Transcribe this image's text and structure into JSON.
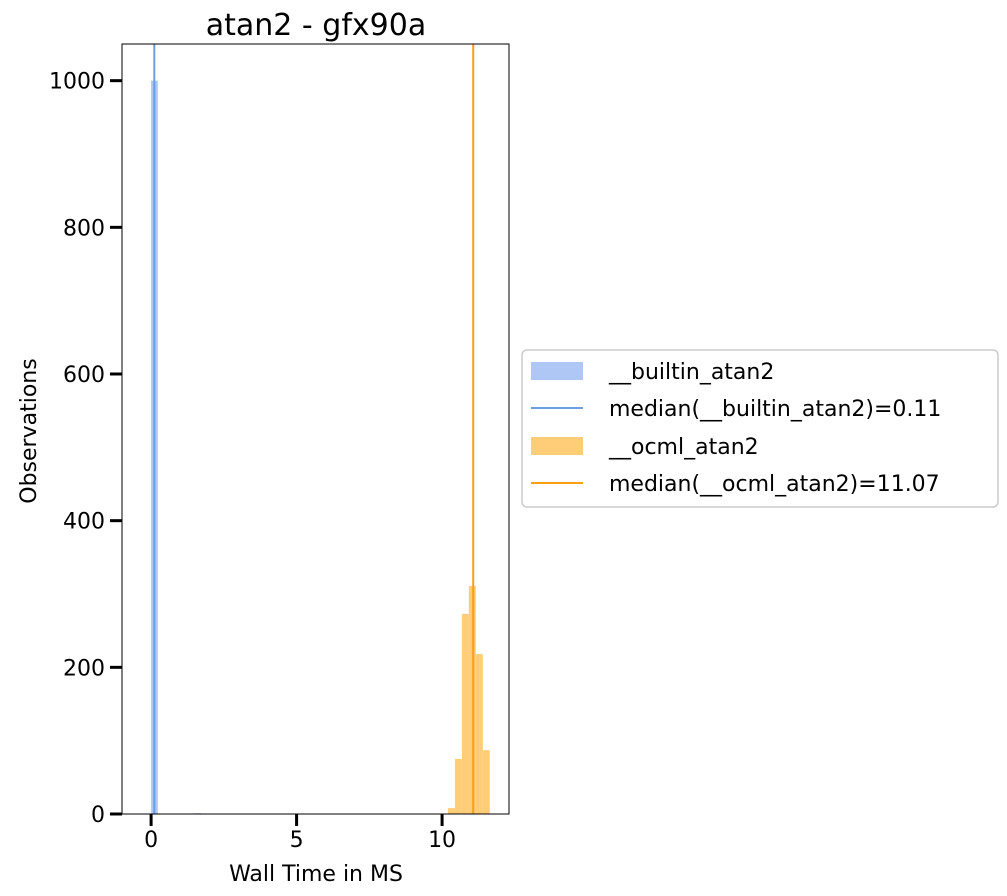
{
  "chart_data": {
    "type": "bar",
    "title": "atan2 - gfx90a",
    "xlabel": "Wall Time in MS",
    "ylabel": "Observations",
    "xlim": [
      -1.0,
      12.3
    ],
    "ylim": [
      0,
      1050
    ],
    "xticks": [
      0,
      5,
      10
    ],
    "yticks": [
      0,
      200,
      400,
      600,
      800,
      1000
    ],
    "grid": false,
    "legend_position": "right, outside",
    "series": [
      {
        "name": "__builtin_atan2",
        "kind": "histogram",
        "color": "#aec7f5",
        "bins": [
          {
            "x0": 0.0,
            "x1": 0.23,
            "count": 1000
          },
          {
            "x0": 1.5,
            "x1": 1.73,
            "count": 1
          }
        ]
      },
      {
        "name": "median(__builtin_atan2)=0.11",
        "kind": "vline",
        "color": "#6a9fe0",
        "x": 0.11
      },
      {
        "name": "__ocml_atan2",
        "kind": "histogram",
        "color": "#ffcc77",
        "bins": [
          {
            "x0": 10.2,
            "x1": 10.44,
            "count": 8
          },
          {
            "x0": 10.44,
            "x1": 10.68,
            "count": 75
          },
          {
            "x0": 10.68,
            "x1": 10.92,
            "count": 273
          },
          {
            "x0": 10.92,
            "x1": 11.16,
            "count": 311
          },
          {
            "x0": 11.16,
            "x1": 11.4,
            "count": 218
          },
          {
            "x0": 11.4,
            "x1": 11.64,
            "count": 87
          }
        ]
      },
      {
        "name": "median(__ocml_atan2)=11.07",
        "kind": "vline",
        "color": "#ff9f10",
        "x": 11.07
      }
    ]
  }
}
